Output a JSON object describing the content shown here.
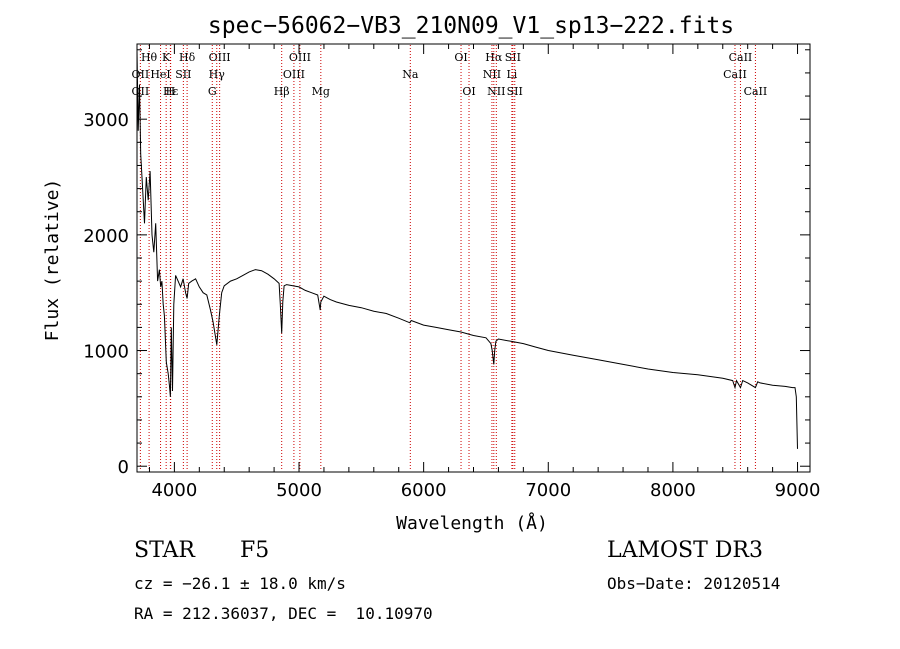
{
  "chart_data": {
    "type": "line",
    "title": "spec−56062−VB3_210N09_V1_sp13−222.fits",
    "xlabel": "Wavelength (Å)",
    "ylabel": "Flux (relative)",
    "xlim": [
      3700,
      9100
    ],
    "ylim": [
      -50,
      3650
    ],
    "x_ticks": [
      4000,
      5000,
      6000,
      7000,
      8000,
      9000
    ],
    "y_ticks": [
      0,
      1000,
      2000,
      3000
    ],
    "grid": false,
    "series": [
      {
        "name": "spectrum",
        "x": [
          3700,
          3710,
          3720,
          3730,
          3745,
          3760,
          3775,
          3790,
          3805,
          3820,
          3835,
          3850,
          3865,
          3880,
          3890,
          3900,
          3910,
          3920,
          3935,
          3950,
          3960,
          3968,
          3975,
          3985,
          3995,
          4010,
          4030,
          4050,
          4070,
          4090,
          4102,
          4115,
          4140,
          4170,
          4200,
          4230,
          4260,
          4290,
          4310,
          4325,
          4340,
          4360,
          4380,
          4400,
          4450,
          4500,
          4550,
          4600,
          4650,
          4700,
          4750,
          4800,
          4840,
          4850,
          4861,
          4870,
          4880,
          4900,
          4950,
          5000,
          5050,
          5100,
          5150,
          5170,
          5175,
          5200,
          5250,
          5300,
          5400,
          5500,
          5600,
          5700,
          5800,
          5890,
          5900,
          6000,
          6100,
          6200,
          6300,
          6400,
          6500,
          6540,
          6550,
          6563,
          6570,
          6580,
          6600,
          6700,
          6800,
          6900,
          7000,
          7200,
          7400,
          7600,
          7800,
          8000,
          8200,
          8400,
          8480,
          8498,
          8510,
          8542,
          8560,
          8600,
          8662,
          8680,
          8700,
          8800,
          8900,
          8960,
          8980,
          8990,
          9000
        ],
        "y": [
          3600,
          2900,
          3300,
          2700,
          2400,
          2100,
          2500,
          2300,
          2550,
          2000,
          1850,
          2100,
          1600,
          1700,
          1550,
          1600,
          1400,
          1300,
          900,
          800,
          700,
          600,
          1200,
          650,
          1400,
          1650,
          1600,
          1550,
          1620,
          1500,
          1450,
          1580,
          1600,
          1620,
          1550,
          1500,
          1480,
          1350,
          1250,
          1150,
          1050,
          1300,
          1500,
          1560,
          1600,
          1620,
          1650,
          1680,
          1700,
          1690,
          1660,
          1620,
          1580,
          1400,
          1150,
          1420,
          1560,
          1570,
          1560,
          1550,
          1520,
          1500,
          1480,
          1350,
          1420,
          1470,
          1440,
          1420,
          1390,
          1370,
          1340,
          1320,
          1280,
          1240,
          1260,
          1220,
          1200,
          1180,
          1160,
          1130,
          1110,
          1060,
          1000,
          880,
          1000,
          1080,
          1100,
          1080,
          1060,
          1030,
          1000,
          960,
          920,
          880,
          840,
          810,
          790,
          760,
          740,
          680,
          740,
          680,
          740,
          720,
          680,
          730,
          720,
          700,
          690,
          680,
          680,
          600,
          150
        ]
      }
    ],
    "lines": [
      {
        "label": "Hθ",
        "x": 3797,
        "row": 1
      },
      {
        "label": "K",
        "x": 3934,
        "row": 1
      },
      {
        "label": "Hδ",
        "x": 4102,
        "row": 1
      },
      {
        "label": "OIII",
        "x": 4363,
        "row": 1
      },
      {
        "label": "OIII",
        "x": 5007,
        "row": 1
      },
      {
        "label": "OI",
        "x": 6300,
        "row": 1
      },
      {
        "label": "Hα",
        "x": 6563,
        "row": 1
      },
      {
        "label": "SII",
        "x": 6716,
        "row": 1
      },
      {
        "label": "CaII",
        "x": 8542,
        "row": 1
      },
      {
        "label": "OII",
        "x": 3727,
        "row": 2
      },
      {
        "label": "HeI",
        "x": 3889,
        "row": 2
      },
      {
        "label": "SII",
        "x": 4072,
        "row": 2
      },
      {
        "label": "Hγ",
        "x": 4340,
        "row": 2
      },
      {
        "label": "OIII",
        "x": 4959,
        "row": 2
      },
      {
        "label": "Na",
        "x": 5893,
        "row": 2
      },
      {
        "label": "NII",
        "x": 6548,
        "row": 2
      },
      {
        "label": "Li",
        "x": 6708,
        "row": 2
      },
      {
        "label": "CaII",
        "x": 8498,
        "row": 2
      },
      {
        "label": "OII",
        "x": 3727,
        "row": 3
      },
      {
        "label": "Hε",
        "x": 3970,
        "row": 3
      },
      {
        "label": "H",
        "x": 3968,
        "row": 3
      },
      {
        "label": "G",
        "x": 4304,
        "row": 3
      },
      {
        "label": "Hβ",
        "x": 4861,
        "row": 3
      },
      {
        "label": "Mg",
        "x": 5175,
        "row": 3
      },
      {
        "label": "OI",
        "x": 6364,
        "row": 3
      },
      {
        "label": "NII",
        "x": 6583,
        "row": 3
      },
      {
        "label": "SII",
        "x": 6731,
        "row": 3
      },
      {
        "label": "CaII",
        "x": 8662,
        "row": 3
      }
    ]
  },
  "info": {
    "object_class": "STAR",
    "subclass": "F5",
    "survey": "LAMOST DR3",
    "redshift": "cz = −26.1 ± 18.0 km/s",
    "obs_date": "Obs−Date: 20120514",
    "coords": "RA = 212.36037, DEC =  10.10970"
  }
}
